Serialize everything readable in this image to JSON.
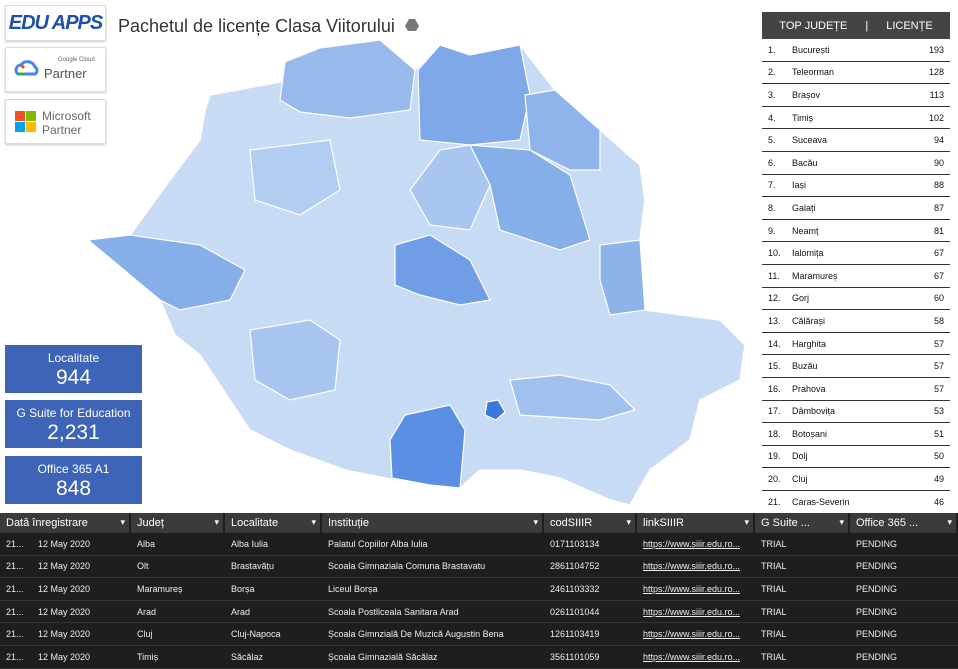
{
  "header": {
    "title": "Pachetul de licențe Clasa Viitorului",
    "logo": "EDU APPS",
    "partners": [
      {
        "brand": "Google Cloud",
        "label": "Partner"
      },
      {
        "brand": "Microsoft",
        "label": "Partner"
      }
    ]
  },
  "scorecards": [
    {
      "label": "Localitate",
      "value": "944"
    },
    {
      "label": "G Suite for Education",
      "value": "2,231"
    },
    {
      "label": "Office 365 A1",
      "value": "848"
    }
  ],
  "top_table": {
    "columns": [
      "TOP JUDEȚE",
      "LICENȚE"
    ],
    "rows": [
      [
        "1.",
        "București",
        "193"
      ],
      [
        "2.",
        "Teleorman",
        "128"
      ],
      [
        "3.",
        "Brașov",
        "113"
      ],
      [
        "4.",
        "Timiș",
        "102"
      ],
      [
        "5.",
        "Suceava",
        "94"
      ],
      [
        "6.",
        "Bacău",
        "90"
      ],
      [
        "7.",
        "Iași",
        "88"
      ],
      [
        "8.",
        "Galați",
        "87"
      ],
      [
        "9.",
        "Neamț",
        "81"
      ],
      [
        "10.",
        "Ialomița",
        "67"
      ],
      [
        "11.",
        "Maramureș",
        "67"
      ],
      [
        "12.",
        "Gorj",
        "60"
      ],
      [
        "13.",
        "Călărași",
        "58"
      ],
      [
        "14.",
        "Harghita",
        "57"
      ],
      [
        "15.",
        "Buzău",
        "57"
      ],
      [
        "16.",
        "Prahova",
        "57"
      ],
      [
        "17.",
        "Dâmbovița",
        "53"
      ],
      [
        "18.",
        "Botoșani",
        "51"
      ],
      [
        "19.",
        "Dolj",
        "50"
      ],
      [
        "20.",
        "Cluj",
        "49"
      ],
      [
        "21.",
        "Caras-Severin",
        "46"
      ]
    ]
  },
  "records": {
    "columns": [
      "Dată înregistrare",
      "Județ",
      "Localitate",
      "Instituție",
      "codSIIIR",
      "linkSIIIR",
      "G Suite ...",
      "Office 365 ..."
    ],
    "rows": [
      [
        "21...",
        "12 May 2020",
        "Alba",
        "Alba Iulia",
        "Palatul Copiilor Alba Iulia",
        "0171103134",
        "https://www.siiir.edu.ro...",
        "TRIAL",
        "PENDING"
      ],
      [
        "21...",
        "12 May 2020",
        "Olt",
        "Brastavățu",
        "Scoala Gimnaziala Comuna Brastavatu",
        "2861104752",
        "https://www.siiir.edu.ro...",
        "TRIAL",
        "PENDING"
      ],
      [
        "21...",
        "12 May 2020",
        "Maramureș",
        "Borșa",
        "Liceul Borșa",
        "2461103332",
        "https://www.siiir.edu.ro...",
        "TRIAL",
        "PENDING"
      ],
      [
        "21...",
        "12 May 2020",
        "Arad",
        "Arad",
        "Scoala Postliceala Sanitara Arad",
        "0261101044",
        "https://www.siiir.edu.ro...",
        "TRIAL",
        "PENDING"
      ],
      [
        "21...",
        "12 May 2020",
        "Cluj",
        "Cluj-Napoca",
        "Școala Gimnzială De Muzică Augustin Bena",
        "1261103419",
        "https://www.siiir.edu.ro...",
        "TRIAL",
        "PENDING"
      ],
      [
        "21...",
        "12 May 2020",
        "Timiș",
        "Săcălaz",
        "Școala Gimnazială Săcălaz",
        "3561101059",
        "https://www.siiir.edu.ro...",
        "TRIAL",
        "PENDING"
      ]
    ]
  }
}
